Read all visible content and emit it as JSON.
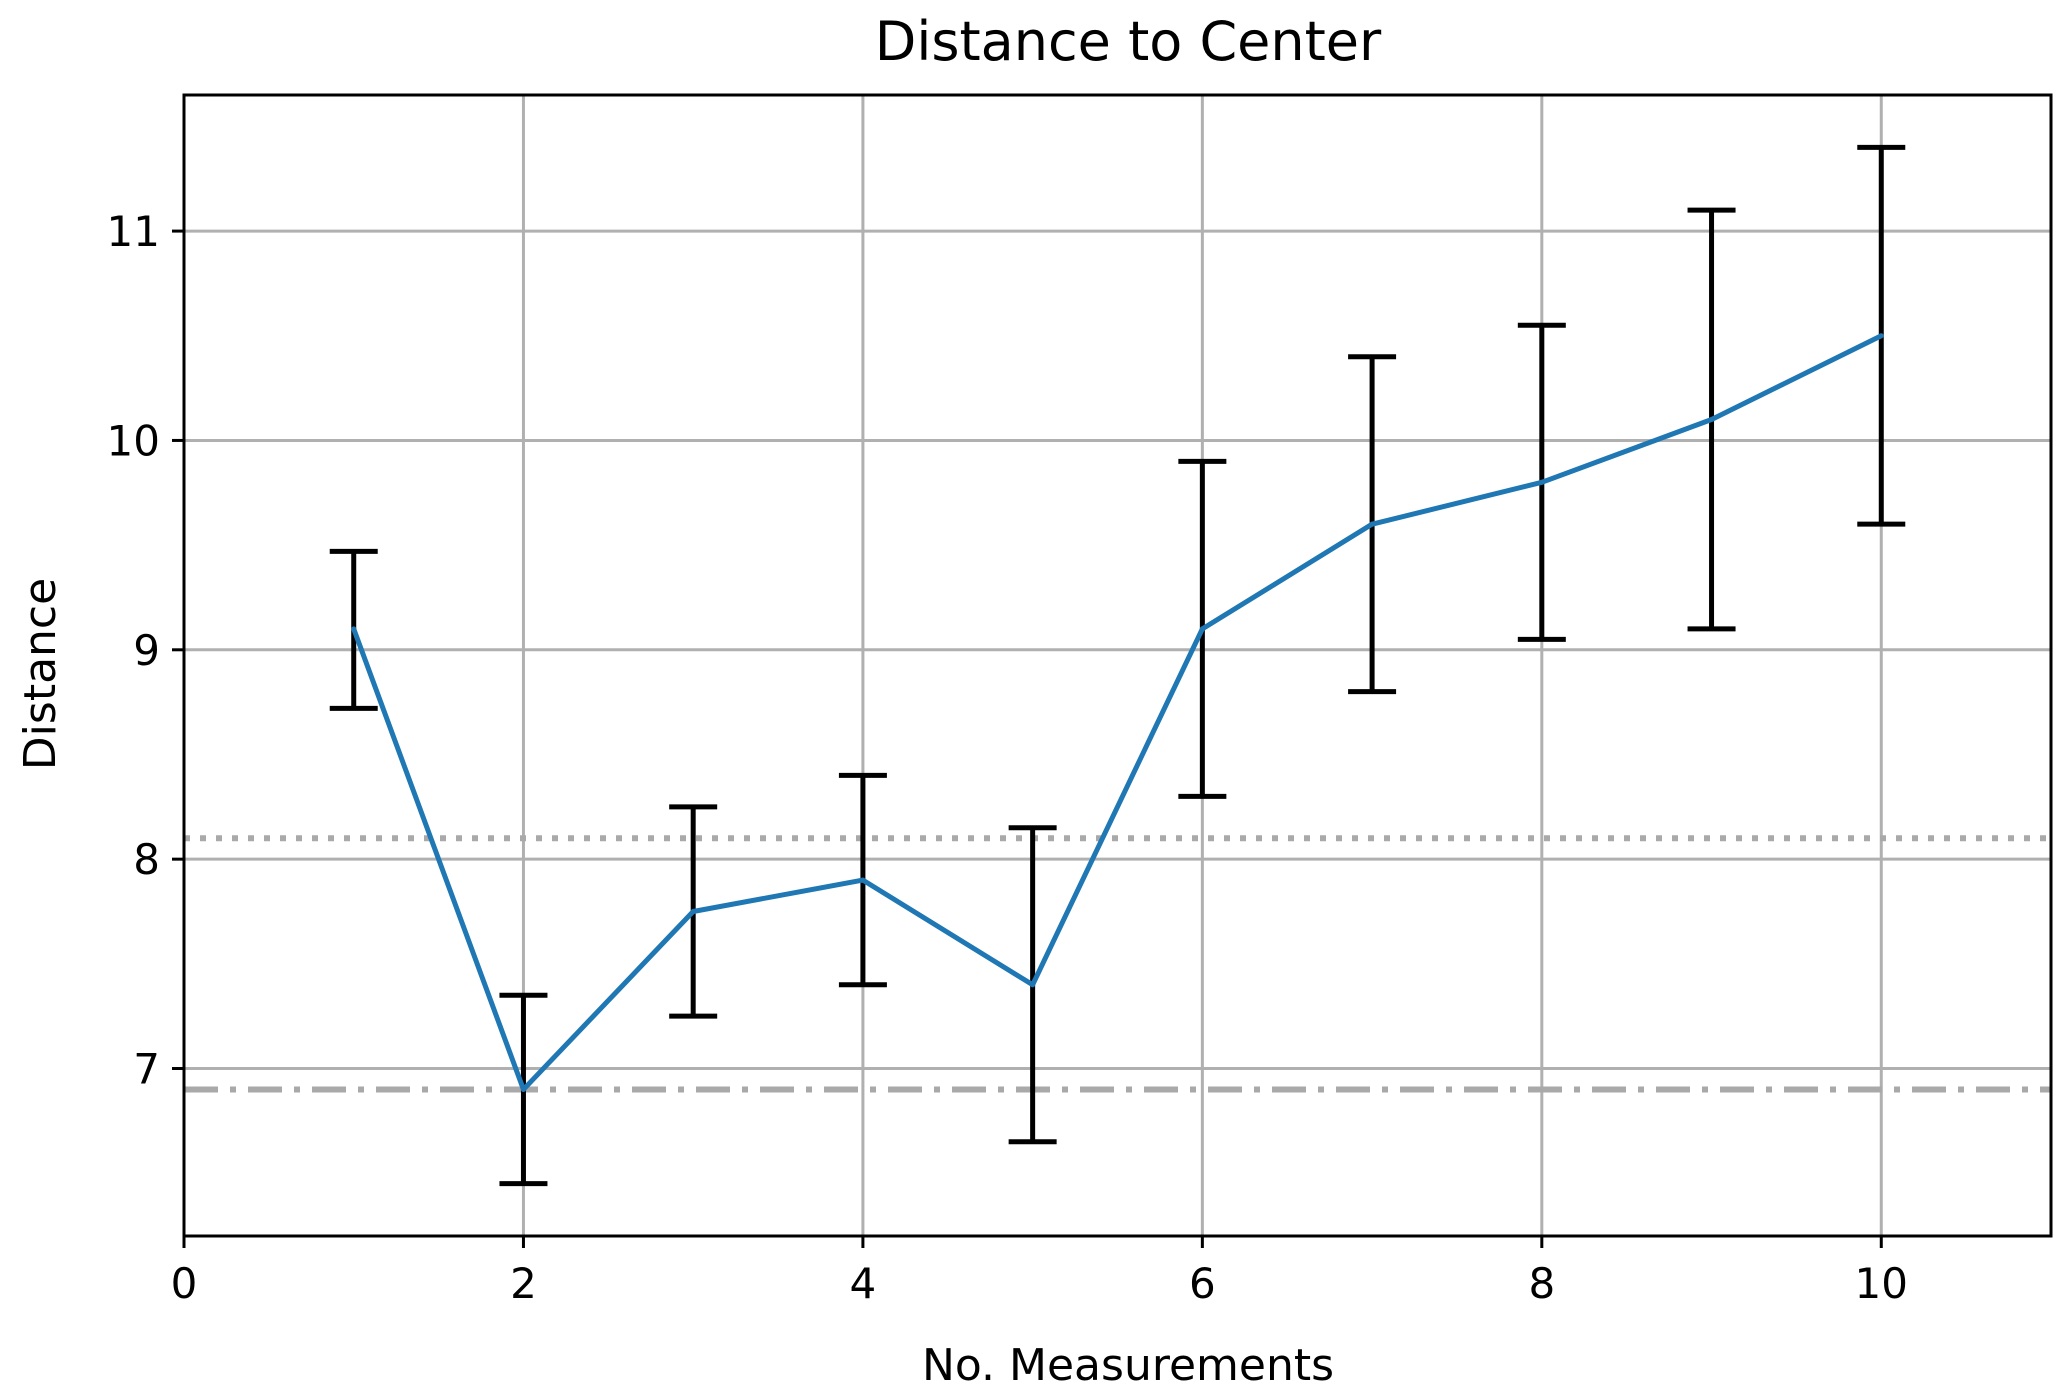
{
  "chart_data": {
    "type": "line",
    "title": "Distance to Center",
    "xlabel": "No. Measurements",
    "ylabel": "Distance",
    "xlim": [
      0,
      11
    ],
    "ylim": [
      6.2,
      11.65
    ],
    "xticks": [
      0,
      2,
      4,
      6,
      8,
      10
    ],
    "yticks": [
      7,
      8,
      9,
      10,
      11
    ],
    "xtick_labels": [
      "0",
      "2",
      "4",
      "6",
      "8",
      "10"
    ],
    "ytick_labels": [
      "7",
      "8",
      "9",
      "10",
      "11"
    ],
    "grid": true,
    "series": [
      {
        "x": [
          1,
          2,
          3,
          4,
          5,
          6,
          7,
          8,
          9,
          10
        ],
        "values": [
          9.1,
          6.9,
          7.75,
          7.9,
          7.4,
          9.1,
          9.6,
          9.8,
          10.1,
          10.5
        ],
        "err_low": [
          8.72,
          6.45,
          7.25,
          7.4,
          6.65,
          8.3,
          8.8,
          9.05,
          9.1,
          9.6
        ],
        "err_high": [
          9.47,
          7.35,
          8.25,
          8.4,
          8.15,
          9.9,
          10.4,
          10.55,
          11.1,
          11.4
        ],
        "color": "#1f77b4",
        "error_color": "#000000"
      }
    ],
    "reference_lines": [
      {
        "y": 8.1,
        "style": "dotted",
        "color": "#a9a9a9"
      },
      {
        "y": 6.9,
        "style": "dashdot",
        "color": "#a9a9a9"
      }
    ],
    "grid_color": "#b0b0b0"
  }
}
